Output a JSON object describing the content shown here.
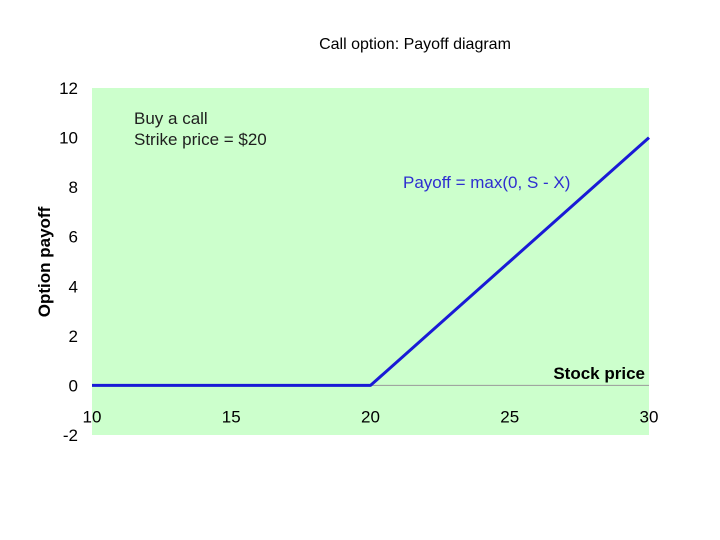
{
  "slide": {
    "title": "Call option: Payoff diagram"
  },
  "colors": {
    "plot_background": "#ccffcc",
    "payoff_line": "#1a1ad6",
    "payoff_label": "#2e2ed0",
    "annotation_text": "#1f1f1f"
  },
  "chart_data": {
    "type": "line",
    "title": "Call option: Payoff diagram",
    "xlabel": "Stock price",
    "ylabel": "Option payoff",
    "xlim": [
      10,
      30
    ],
    "ylim": [
      -2,
      12
    ],
    "x_ticks": [
      10,
      15,
      20,
      25,
      30
    ],
    "y_ticks": [
      -2,
      0,
      2,
      4,
      6,
      8,
      10,
      12
    ],
    "grid": false,
    "series": [
      {
        "x": [
          10,
          20,
          30
        ],
        "y": [
          0,
          0,
          10
        ]
      }
    ],
    "annotations": [
      {
        "text": "Buy a call"
      },
      {
        "text": "Strike price = $20"
      },
      {
        "text": "Payoff = max(0, S - X)"
      }
    ]
  }
}
